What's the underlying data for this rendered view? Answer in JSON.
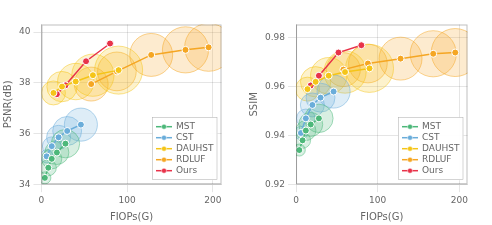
{
  "chart_data": [
    {
      "type": "line",
      "xlabel": "FIOPs(G)",
      "ylabel": "PSNR(dB)",
      "xlim": [
        0,
        210
      ],
      "ylim": [
        34,
        40.3
      ],
      "xticks": [
        0,
        100,
        200
      ],
      "yticks": [
        34,
        36,
        38,
        40
      ],
      "grid": true,
      "legend": "lower right",
      "marker": "circle",
      "series": [
        {
          "name": "MST",
          "color": "#4db87a",
          "x": [
            4,
            8,
            12,
            18,
            28
          ],
          "values": [
            34.25,
            34.65,
            35.0,
            35.25,
            35.6
          ],
          "sizes": [
            25,
            45,
            70,
            100,
            140
          ]
        },
        {
          "name": "CST",
          "color": "#6aadda",
          "x": [
            6,
            12,
            20,
            30,
            46
          ],
          "values": [
            35.1,
            35.5,
            35.85,
            36.1,
            36.35
          ],
          "sizes": [
            30,
            60,
            100,
            145,
            190
          ]
        },
        {
          "name": "DAUHST",
          "color": "#f5c518",
          "x": [
            14,
            24,
            40,
            60,
            90
          ],
          "values": [
            37.6,
            37.85,
            38.05,
            38.3,
            38.5
          ],
          "sizes": [
            100,
            160,
            230,
            310,
            400
          ]
        },
        {
          "name": "RDLUF",
          "color": "#f5a623",
          "x": [
            58,
            88,
            128,
            168,
            195
          ],
          "values": [
            37.95,
            38.45,
            39.1,
            39.3,
            39.4
          ],
          "sizes": [
            200,
            260,
            320,
            370,
            400
          ]
        },
        {
          "name": "Ours",
          "color": "#e8334a",
          "x": [
            18,
            28,
            52,
            80
          ],
          "values": [
            37.55,
            37.9,
            38.85,
            39.55
          ],
          "sizes": [
            0,
            0,
            0,
            0
          ]
        }
      ]
    },
    {
      "type": "line",
      "xlabel": "FIOPs(G)",
      "ylabel": "SSIM",
      "xlim": [
        0,
        210
      ],
      "ylim": [
        0.92,
        0.9855
      ],
      "xticks": [
        0,
        100,
        200
      ],
      "yticks": [
        0.92,
        0.94,
        0.96,
        0.98
      ],
      "grid": true,
      "legend": "lower right",
      "marker": "circle",
      "series": [
        {
          "name": "MST",
          "color": "#4db87a",
          "x": [
            4,
            8,
            12,
            18,
            28
          ],
          "values": [
            0.934,
            0.938,
            0.942,
            0.9445,
            0.947
          ],
          "sizes": [
            25,
            45,
            70,
            100,
            140
          ]
        },
        {
          "name": "CST",
          "color": "#6aadda",
          "x": [
            6,
            12,
            20,
            30,
            46
          ],
          "values": [
            0.941,
            0.947,
            0.9525,
            0.9555,
            0.958
          ],
          "sizes": [
            30,
            60,
            100,
            145,
            190
          ]
        },
        {
          "name": "DAUHST",
          "color": "#f5c518",
          "x": [
            14,
            24,
            40,
            60,
            90
          ],
          "values": [
            0.959,
            0.962,
            0.9645,
            0.966,
            0.9675
          ],
          "sizes": [
            100,
            160,
            230,
            310,
            400
          ]
        },
        {
          "name": "RDLUF",
          "color": "#f5a623",
          "x": [
            58,
            88,
            128,
            168,
            195
          ],
          "values": [
            0.967,
            0.9695,
            0.9715,
            0.9735,
            0.974
          ],
          "sizes": [
            200,
            260,
            320,
            370,
            400
          ]
        },
        {
          "name": "Ours",
          "color": "#e8334a",
          "x": [
            18,
            28,
            52,
            80
          ],
          "values": [
            0.9605,
            0.9645,
            0.974,
            0.977
          ],
          "sizes": [
            0,
            0,
            0,
            0
          ]
        }
      ]
    }
  ]
}
